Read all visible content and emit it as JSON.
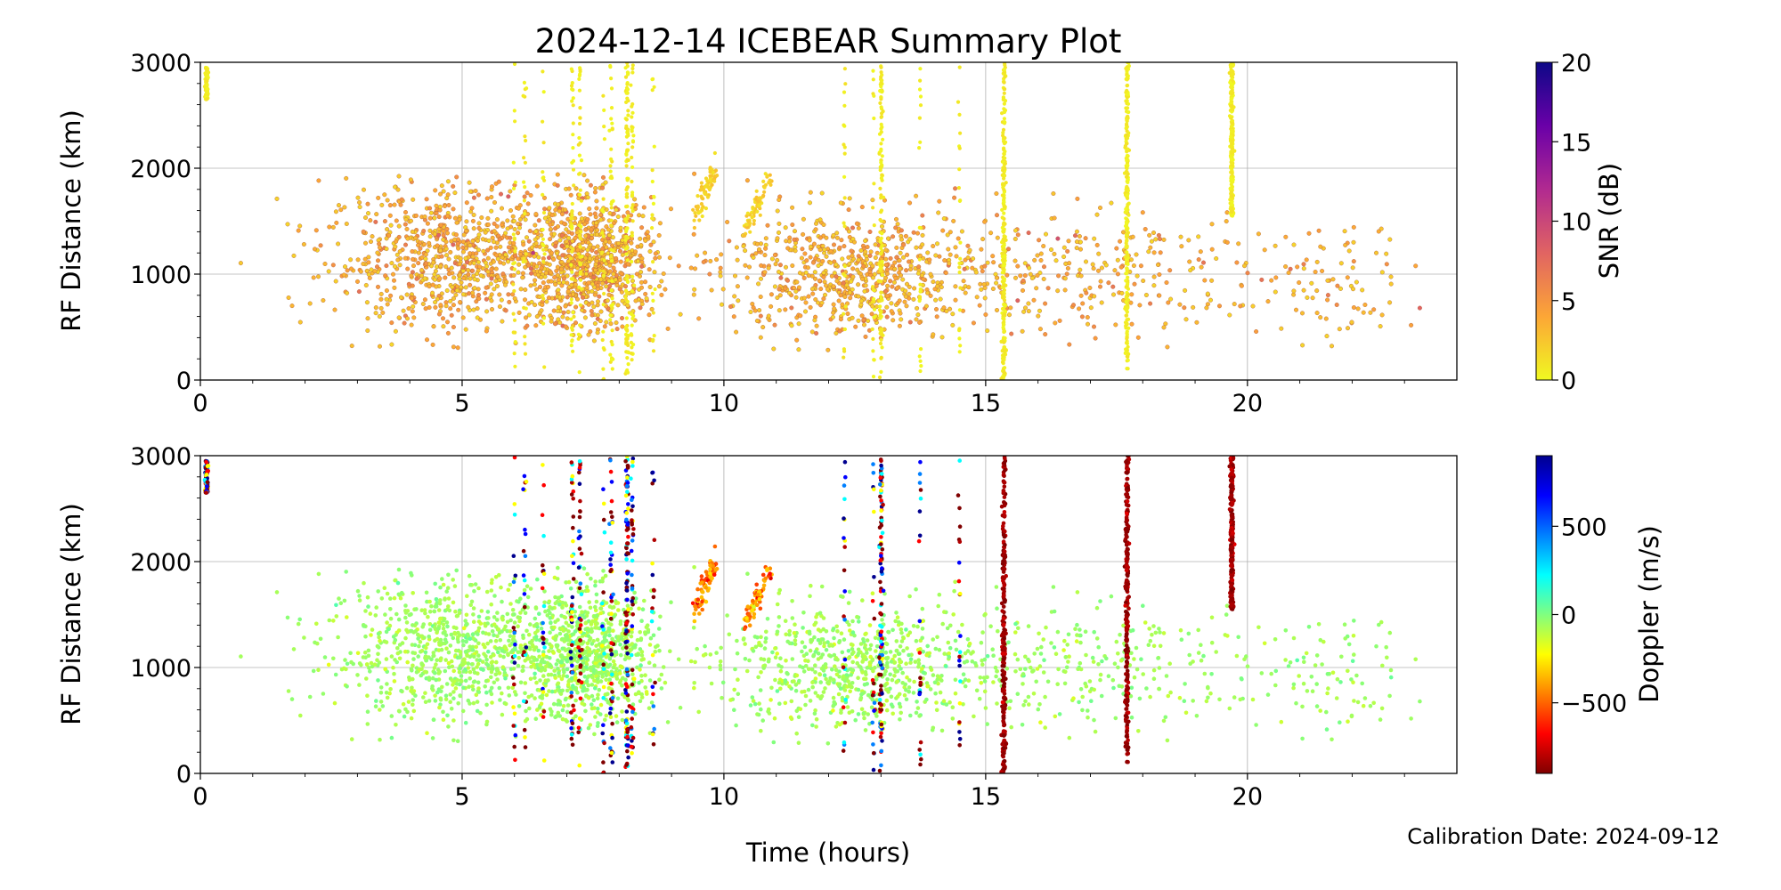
{
  "figure": {
    "title": "2024-12-14 ICEBEAR Summary Plot",
    "xlabel": "Time (hours)",
    "calibration": "Calibration Date: 2024-09-12"
  },
  "chart_data": [
    {
      "type": "scatter",
      "panel": "snr",
      "ylabel": "RF Distance (km)",
      "xlim": [
        0,
        24
      ],
      "ylim": [
        0,
        3000
      ],
      "xticks": [
        0,
        5,
        10,
        15,
        20
      ],
      "yticks": [
        0,
        1000,
        2000,
        3000
      ],
      "grid": true,
      "color_by": "SNR (dB)",
      "colorbar": {
        "label": "SNR (dB)",
        "range": [
          0,
          20
        ],
        "ticks": [
          0,
          5,
          10,
          15,
          20
        ],
        "colormap": "plasma_r",
        "stops": [
          "#f0f921",
          "#fca636",
          "#e16462",
          "#b12a90",
          "#6a00a8",
          "#0d0887"
        ]
      },
      "cloud": [
        {
          "x_center": 5.0,
          "x_spread": 2.6,
          "y_center": 1150,
          "y_spread": 380,
          "points": 900
        },
        {
          "x_center": 7.5,
          "x_spread": 1.2,
          "y_center": 1100,
          "y_spread": 330,
          "points": 700
        },
        {
          "x_center": 12.5,
          "x_spread": 2.6,
          "y_center": 1000,
          "y_spread": 330,
          "points": 700
        },
        {
          "x_center": 17.0,
          "x_spread": 3.5,
          "y_center": 1000,
          "y_spread": 330,
          "points": 260
        },
        {
          "x_center": 21.5,
          "x_spread": 1.8,
          "y_center": 900,
          "y_spread": 330,
          "points": 90
        }
      ],
      "arcs": [
        {
          "x_start": 9.45,
          "x_end": 9.85,
          "y_start": 1550,
          "y_end": 2000
        },
        {
          "x_start": 10.4,
          "x_end": 10.9,
          "y_start": 1400,
          "y_end": 1950
        }
      ],
      "vertical_events": [
        {
          "x": 0.12,
          "y_min": 2650,
          "y_max": 2950,
          "density": "dense"
        },
        {
          "x": 6.0,
          "y_min": 0,
          "y_max": 3000,
          "density": "sparse"
        },
        {
          "x": 6.2,
          "y_min": 0,
          "y_max": 3000,
          "density": "sparse"
        },
        {
          "x": 6.55,
          "y_min": 0,
          "y_max": 3000,
          "density": "sparse"
        },
        {
          "x": 7.1,
          "y_min": 0,
          "y_max": 3000,
          "density": "medium"
        },
        {
          "x": 7.25,
          "y_min": 0,
          "y_max": 3000,
          "density": "medium"
        },
        {
          "x": 7.7,
          "y_min": 0,
          "y_max": 3000,
          "density": "sparse"
        },
        {
          "x": 7.85,
          "y_min": 0,
          "y_max": 3000,
          "density": "medium"
        },
        {
          "x": 8.15,
          "y_min": 0,
          "y_max": 3000,
          "density": "dense"
        },
        {
          "x": 8.25,
          "y_min": 0,
          "y_max": 3000,
          "density": "medium"
        },
        {
          "x": 8.65,
          "y_min": 0,
          "y_max": 3000,
          "density": "sparse"
        },
        {
          "x": 12.3,
          "y_min": 0,
          "y_max": 3000,
          "density": "sparse"
        },
        {
          "x": 12.85,
          "y_min": 0,
          "y_max": 3000,
          "density": "sparse"
        },
        {
          "x": 13.0,
          "y_min": 0,
          "y_max": 3000,
          "density": "dense"
        },
        {
          "x": 13.75,
          "y_min": 0,
          "y_max": 3000,
          "density": "sparse"
        },
        {
          "x": 14.5,
          "y_min": 0,
          "y_max": 3000,
          "density": "sparse"
        },
        {
          "x": 15.35,
          "y_min": 0,
          "y_max": 3000,
          "density": "solid"
        },
        {
          "x": 17.7,
          "y_min": 100,
          "y_max": 3000,
          "density": "solid"
        },
        {
          "x": 19.7,
          "y_min": 1550,
          "y_max": 3000,
          "density": "solid"
        }
      ]
    },
    {
      "type": "scatter",
      "panel": "doppler",
      "ylabel": "RF Distance (km)",
      "xlim": [
        0,
        24
      ],
      "ylim": [
        0,
        3000
      ],
      "xticks": [
        0,
        5,
        10,
        15,
        20
      ],
      "yticks": [
        0,
        1000,
        2000,
        3000
      ],
      "grid": true,
      "color_by": "Doppler (m/s)",
      "colorbar": {
        "label": "Doppler (m/s)",
        "range": [
          -900,
          900
        ],
        "ticks": [
          -500,
          0,
          500
        ],
        "tick_labels": [
          "−500",
          "0",
          "500"
        ],
        "colormap": "jet_r",
        "stops": [
          "#800000",
          "#ff0000",
          "#ff8000",
          "#ffff00",
          "#80ff80",
          "#00ffff",
          "#0080ff",
          "#0000ff",
          "#00008f"
        ]
      },
      "cloud_doppler_mps": -60,
      "arcs_doppler_mps": -450,
      "solid_event_doppler_mps": -850
    }
  ]
}
